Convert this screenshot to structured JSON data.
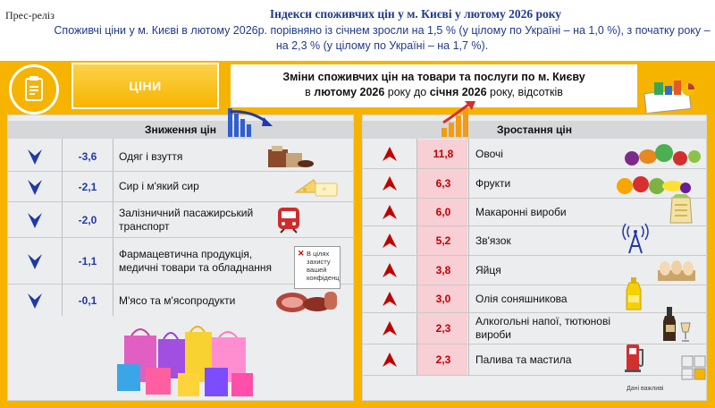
{
  "header": {
    "press_release": "Прес-реліз",
    "title": "Індекси споживчих цін у м. Києві у лютому 2026 року",
    "lead": "Споживчі ціни у м. Києві в лютому 2026р. порівняно із січнем зросли на 1,5 % (у цілому по Україні – на 1,0 %), з початку року – на 2,3 % (у цілому по Україні – на 1,7 %)."
  },
  "tile": {
    "label": "ЦІНИ"
  },
  "subhead": {
    "line1": "Зміни споживчих цін на товари та послуги по м. Києву",
    "line2_pre": "в ",
    "line2_b1": "лютому 2026",
    "line2_mid": " року до ",
    "line2_b2": "січня 2026",
    "line2_post": " року, відсотків"
  },
  "decrease": {
    "title": "Зниження цін",
    "items": [
      {
        "value": "-3,6",
        "label": "Одяг і взуття",
        "icon": "clothes-shoes-icon"
      },
      {
        "value": "-2,1",
        "label": "Сир і м'який сир",
        "icon": "cheese-icon"
      },
      {
        "value": "-2,0",
        "label": "Залізничний пасажирський транспорт",
        "icon": "train-icon"
      },
      {
        "value": "-1,1",
        "label": "Фармацевтична продукція, медичні товари та обладнання",
        "icon": "blocked-image-icon"
      },
      {
        "value": "-0,1",
        "label": "М'ясо та м'ясопродукти",
        "icon": "meat-icon"
      }
    ],
    "blocked_text": "В цілях захисту вашей конфіденційності",
    "colors": {
      "arrow": "#1f3aa6",
      "value": "#1f3aa6"
    }
  },
  "increase": {
    "title": "Зростання цін",
    "items": [
      {
        "value": "11,8",
        "label": "Овочі",
        "icon": "vegetables-icon"
      },
      {
        "value": "6,3",
        "label": "Фрукти",
        "icon": "fruits-icon"
      },
      {
        "value": "6,0",
        "label": "Макаронні вироби",
        "icon": "pasta-icon"
      },
      {
        "value": "5,2",
        "label": "Зв'язок",
        "icon": "antenna-icon"
      },
      {
        "value": "3,8",
        "label": "Яйця",
        "icon": "eggs-icon"
      },
      {
        "value": "3,0",
        "label": "Олія соняшникова",
        "icon": "oil-bottle-icon"
      },
      {
        "value": "2,3",
        "label": "Алкогольні напої, тютюнові вироби",
        "icon": "liquor-icon"
      },
      {
        "value": "2,3",
        "label": "Палива та мастила",
        "icon": "fuel-pump-icon"
      }
    ],
    "colors": {
      "arrow": "#c00000",
      "value": "#c00000"
    }
  },
  "footer_note": "Дані важливі",
  "colors": {
    "background": "#f6b300",
    "title_blue": "#1f3a8a",
    "panel": "#ecedee"
  }
}
